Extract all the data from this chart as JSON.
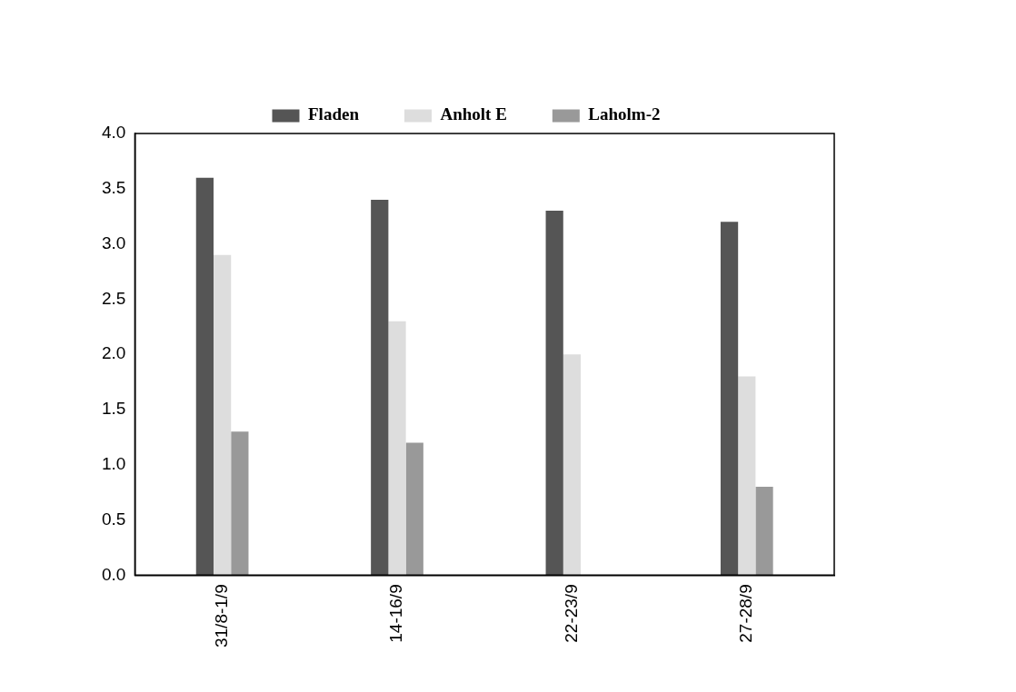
{
  "chart_data": {
    "type": "bar",
    "categories": [
      "31/8-1/9",
      "14-16/9",
      "22-23/9",
      "27-28/9"
    ],
    "series": [
      {
        "name": "Fladen",
        "color": "#555555",
        "values": [
          3.6,
          3.4,
          3.3,
          3.2
        ]
      },
      {
        "name": "Anholt E",
        "color": "#dddddd",
        "values": [
          2.9,
          2.3,
          2.0,
          1.8
        ]
      },
      {
        "name": "Laholm-2",
        "color": "#999999",
        "values": [
          1.3,
          1.2,
          null,
          0.8
        ]
      }
    ],
    "ylim": [
      0,
      4
    ],
    "yticks": [
      {
        "value": 0,
        "label": "0.0"
      },
      {
        "value": 0.5,
        "label": "0.5"
      },
      {
        "value": 1,
        "label": "1.0"
      },
      {
        "value": 1.5,
        "label": "1.5"
      },
      {
        "value": 2,
        "label": "2.0"
      },
      {
        "value": 2.5,
        "label": "2.5"
      },
      {
        "value": 3,
        "label": "3.0"
      },
      {
        "value": 3.5,
        "label": "3.5"
      },
      {
        "value": 4,
        "label": "4.0"
      }
    ],
    "grid": false,
    "legend": "top"
  }
}
